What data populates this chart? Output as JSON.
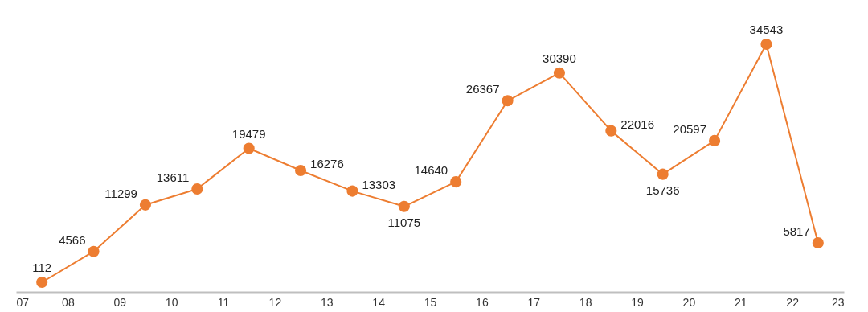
{
  "chart_data": {
    "type": "line",
    "x": [
      7.5,
      8.5,
      9.5,
      10.5,
      11.5,
      12.5,
      13.5,
      14.5,
      15.5,
      16.5,
      17.5,
      18.5,
      19.5,
      20.5,
      21.5,
      22.5
    ],
    "series": [
      {
        "color": "#ed7d31",
        "values": [
          112,
          4566,
          11299,
          13611,
          19479,
          16276,
          13303,
          11075,
          14640,
          26367,
          30390,
          22016,
          15736,
          20597,
          34543,
          5817
        ]
      }
    ],
    "xlim": [
      7,
      23
    ],
    "xticks": [
      {
        "value": 7,
        "label": "07"
      },
      {
        "value": 8,
        "label": "08"
      },
      {
        "value": 9,
        "label": "09"
      },
      {
        "value": 10,
        "label": "10"
      },
      {
        "value": 11,
        "label": "11"
      },
      {
        "value": 12,
        "label": "12"
      },
      {
        "value": 13,
        "label": "13"
      },
      {
        "value": 14,
        "label": "14"
      },
      {
        "value": 15,
        "label": "15"
      },
      {
        "value": 16,
        "label": "16"
      },
      {
        "value": 17,
        "label": "17"
      },
      {
        "value": 18,
        "label": "18"
      },
      {
        "value": 19,
        "label": "19"
      },
      {
        "value": 20,
        "label": "20"
      },
      {
        "value": 21,
        "label": "21"
      },
      {
        "value": 22,
        "label": "22"
      },
      {
        "value": 23,
        "label": "23"
      }
    ],
    "tick_labels": "x",
    "data_labels": true,
    "marker": "circle",
    "line_style": "solid",
    "grid": false
  }
}
